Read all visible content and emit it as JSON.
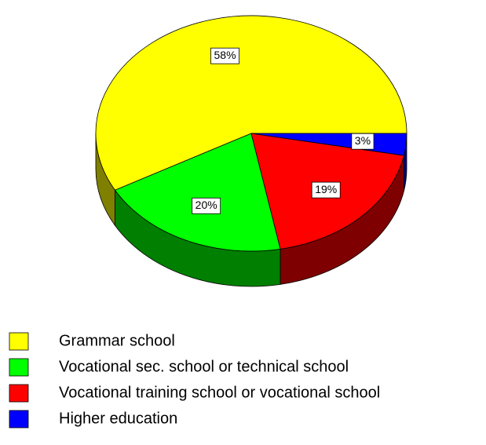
{
  "chart_data": {
    "type": "pie",
    "categories": [
      "Grammar school",
      "Vocational sec. school or technical school",
      "Vocational training school or vocational school",
      "Higher education"
    ],
    "values": [
      58,
      20,
      19,
      3
    ],
    "value_labels": [
      "58%",
      "20%",
      "19%",
      "3%"
    ],
    "colors": [
      "#ffff00",
      "#00ff00",
      "#ff0000",
      "#0000ff"
    ],
    "legend": "bottom-left"
  }
}
